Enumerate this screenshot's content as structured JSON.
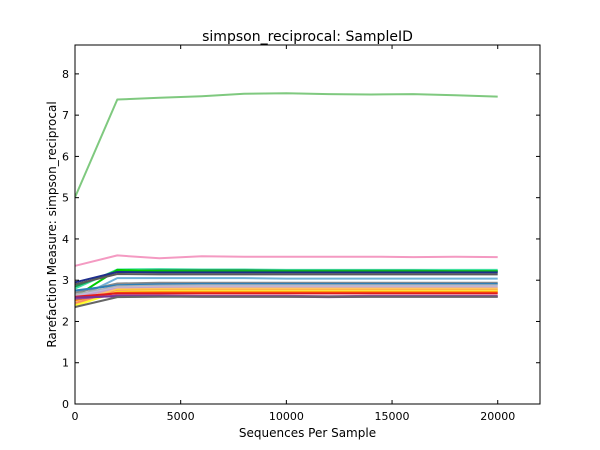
{
  "chart_data": {
    "type": "line",
    "title": "simpson_reciprocal: SampleID",
    "xlabel": "Sequences Per Sample",
    "ylabel": "Rarefaction Measure: simpson_reciprocal",
    "xlim": [
      0,
      22000
    ],
    "ylim": [
      0,
      8.7
    ],
    "xticks": [
      0,
      5000,
      10000,
      15000,
      20000
    ],
    "yticks": [
      0,
      1,
      2,
      3,
      4,
      5,
      6,
      7,
      8
    ],
    "grid": false,
    "legend": "none",
    "x": [
      10,
      2000,
      4000,
      6000,
      8000,
      10000,
      12000,
      14000,
      16000,
      18000,
      20000
    ],
    "series": [
      {
        "color": "#7fc97f",
        "values": [
          5.02,
          7.38,
          7.42,
          7.46,
          7.52,
          7.53,
          7.51,
          7.5,
          7.51,
          7.48,
          7.45
        ]
      },
      {
        "color": "#f49ac2",
        "values": [
          3.35,
          3.6,
          3.53,
          3.58,
          3.57,
          3.57,
          3.57,
          3.57,
          3.56,
          3.57,
          3.56
        ]
      },
      {
        "color": "#40e0a0",
        "values": [
          2.8,
          3.26,
          3.27,
          3.26,
          3.26,
          3.25,
          3.25,
          3.25,
          3.25,
          3.25,
          3.25
        ]
      },
      {
        "color": "#1a9850",
        "values": [
          2.85,
          3.23,
          3.24,
          3.24,
          3.24,
          3.23,
          3.23,
          3.23,
          3.23,
          3.22,
          3.22
        ]
      },
      {
        "color": "#00cc00",
        "values": [
          2.6,
          3.25,
          3.22,
          3.21,
          3.21,
          3.21,
          3.21,
          3.21,
          3.21,
          3.21,
          3.21
        ]
      },
      {
        "color": "#1f2e8c",
        "values": [
          2.95,
          3.2,
          3.19,
          3.19,
          3.19,
          3.19,
          3.19,
          3.19,
          3.19,
          3.19,
          3.19
        ]
      },
      {
        "color": "#5a5a5a",
        "values": [
          2.9,
          3.15,
          3.14,
          3.14,
          3.14,
          3.14,
          3.14,
          3.14,
          3.14,
          3.14,
          3.14
        ]
      },
      {
        "color": "#6fb1d8",
        "values": [
          2.55,
          3.05,
          3.05,
          3.05,
          3.05,
          3.04,
          3.04,
          3.04,
          3.04,
          3.04,
          3.04
        ]
      },
      {
        "color": "#8a8a8a",
        "values": [
          2.7,
          2.92,
          2.94,
          2.94,
          2.94,
          2.94,
          2.94,
          2.94,
          2.94,
          2.94,
          2.94
        ]
      },
      {
        "color": "#2c7fb8",
        "values": [
          2.75,
          2.88,
          2.9,
          2.91,
          2.91,
          2.91,
          2.91,
          2.91,
          2.91,
          2.91,
          2.91
        ]
      },
      {
        "color": "#b0b0b0",
        "values": [
          2.65,
          2.85,
          2.87,
          2.88,
          2.88,
          2.88,
          2.88,
          2.88,
          2.88,
          2.88,
          2.88
        ]
      },
      {
        "color": "#bcbddc",
        "values": [
          2.62,
          2.82,
          2.84,
          2.85,
          2.85,
          2.85,
          2.85,
          2.85,
          2.85,
          2.85,
          2.85
        ]
      },
      {
        "color": "#c8a2c8",
        "values": [
          2.58,
          2.8,
          2.82,
          2.82,
          2.82,
          2.82,
          2.82,
          2.82,
          2.82,
          2.82,
          2.82
        ]
      },
      {
        "color": "#fdbf6f",
        "values": [
          2.5,
          2.78,
          2.79,
          2.8,
          2.8,
          2.8,
          2.8,
          2.8,
          2.8,
          2.8,
          2.8
        ]
      },
      {
        "color": "#ffd92f",
        "values": [
          2.4,
          2.76,
          2.77,
          2.77,
          2.77,
          2.77,
          2.77,
          2.77,
          2.77,
          2.77,
          2.77
        ]
      },
      {
        "color": "#fc8d62",
        "values": [
          2.45,
          2.74,
          2.75,
          2.75,
          2.75,
          2.75,
          2.75,
          2.75,
          2.75,
          2.75,
          2.75
        ]
      },
      {
        "color": "#ffff33",
        "values": [
          2.38,
          2.72,
          2.73,
          2.73,
          2.73,
          2.73,
          2.73,
          2.73,
          2.73,
          2.73,
          2.73
        ]
      },
      {
        "color": "#ff7f00",
        "values": [
          2.52,
          2.7,
          2.71,
          2.71,
          2.71,
          2.71,
          2.71,
          2.71,
          2.71,
          2.71,
          2.71
        ]
      },
      {
        "color": "#e31a1c",
        "values": [
          2.6,
          2.68,
          2.68,
          2.68,
          2.68,
          2.68,
          2.68,
          2.68,
          2.68,
          2.68,
          2.68
        ]
      },
      {
        "color": "#984ea3",
        "values": [
          2.55,
          2.63,
          2.63,
          2.62,
          2.62,
          2.62,
          2.61,
          2.62,
          2.62,
          2.62,
          2.62
        ]
      },
      {
        "color": "#7b3294",
        "values": [
          2.58,
          2.61,
          2.61,
          2.6,
          2.6,
          2.6,
          2.59,
          2.6,
          2.6,
          2.6,
          2.6
        ]
      },
      {
        "color": "#666666",
        "values": [
          2.35,
          2.59,
          2.6,
          2.6,
          2.6,
          2.6,
          2.6,
          2.6,
          2.6,
          2.6,
          2.6
        ]
      }
    ]
  }
}
